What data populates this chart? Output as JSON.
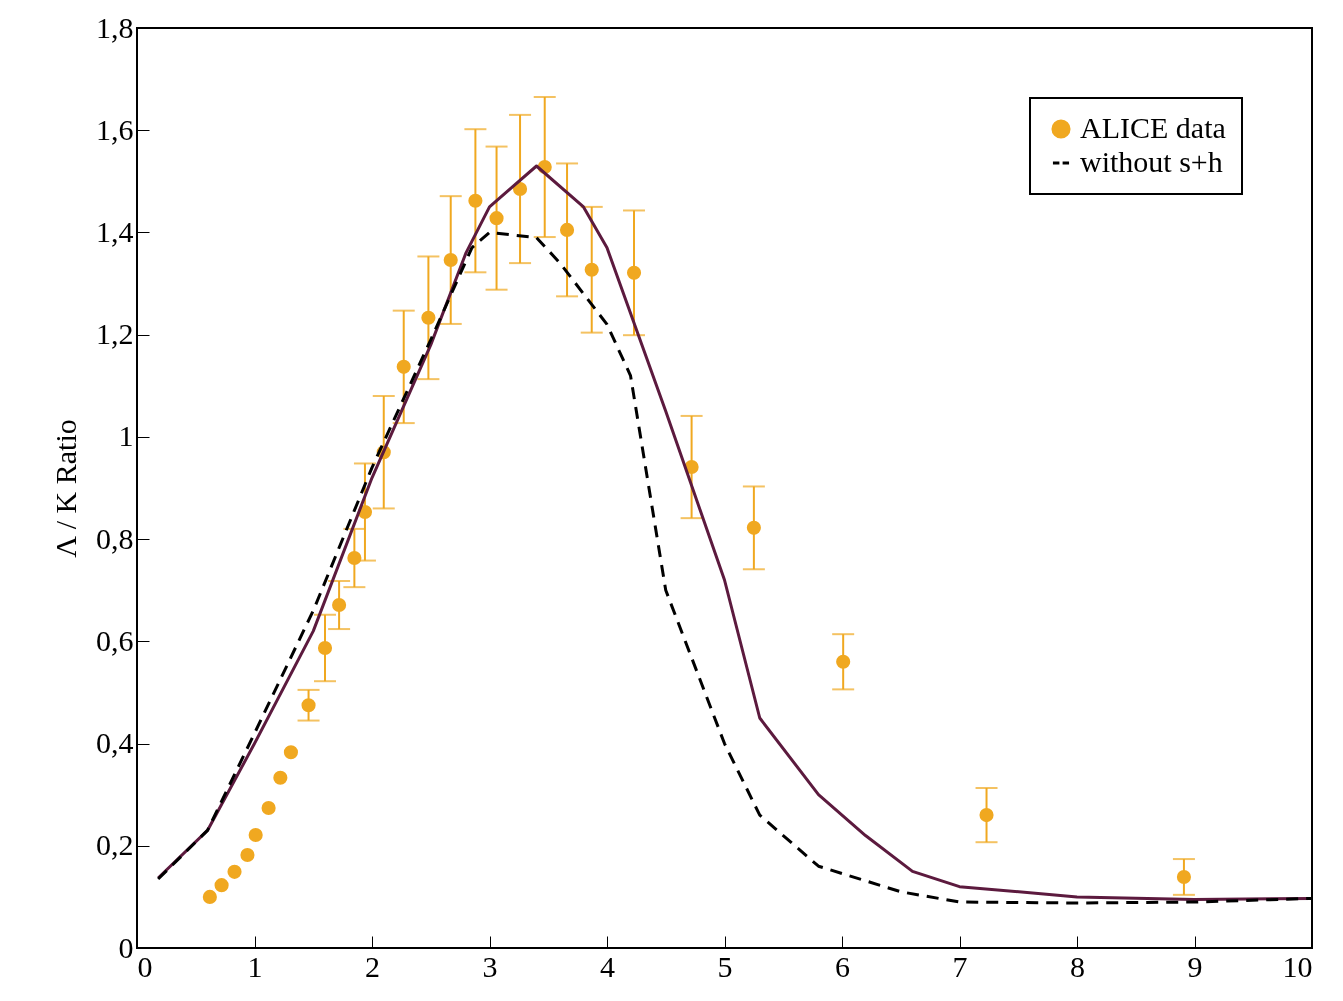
{
  "chart_data": {
    "type": "scatter",
    "ylabel": "Λ / K  Ratio",
    "xlim": [
      0,
      10
    ],
    "ylim": [
      0,
      1.8
    ],
    "xticks": [
      0,
      1,
      2,
      3,
      4,
      5,
      6,
      7,
      8,
      9,
      10
    ],
    "yticks": [
      0,
      {
        "value": 0.2,
        "label": "0,2"
      },
      {
        "value": 0.4,
        "label": "0,4"
      },
      {
        "value": 0.6,
        "label": "0,6"
      },
      {
        "value": 0.8,
        "label": "0,8"
      },
      1,
      {
        "value": 1.2,
        "label": "1,2"
      },
      {
        "value": 1.4,
        "label": "1,4"
      },
      {
        "value": 1.6,
        "label": "1,6"
      },
      {
        "value": 1.8,
        "label": "1,8"
      }
    ],
    "grid": false,
    "legend": "top right",
    "series": [
      {
        "name": "ALICE data",
        "color": "#f0a820",
        "marker": "circle",
        "x": [
          0.62,
          0.72,
          0.83,
          0.94,
          1.01,
          1.12,
          1.22,
          1.31,
          1.46,
          1.6,
          1.72,
          1.85,
          1.94,
          2.1,
          2.27,
          2.48,
          2.67,
          2.88,
          3.06,
          3.26,
          3.47,
          3.66,
          3.87,
          4.23,
          4.72,
          5.25,
          6.01,
          7.23,
          8.91
        ],
        "values": [
          0.1,
          0.123,
          0.149,
          0.182,
          0.221,
          0.274,
          0.333,
          0.383,
          0.475,
          0.587,
          0.671,
          0.763,
          0.853,
          0.97,
          1.137,
          1.233,
          1.346,
          1.462,
          1.428,
          1.485,
          1.528,
          1.405,
          1.327,
          1.321,
          0.941,
          0.822,
          0.56,
          0.26,
          0.139
        ],
        "errors": [
          null,
          null,
          null,
          null,
          null,
          null,
          null,
          null,
          0.03,
          0.065,
          0.047,
          0.057,
          0.095,
          0.11,
          0.11,
          0.12,
          0.125,
          0.14,
          0.14,
          0.145,
          0.137,
          0.13,
          0.123,
          0.122,
          0.1,
          0.081,
          0.054,
          0.053,
          0.035
        ],
        "xerrors": [
          0.05,
          0.05,
          0.05,
          0.05,
          0.05,
          0.05,
          0.05,
          0.05,
          null,
          null,
          null,
          null,
          null,
          null,
          null,
          null,
          null,
          null,
          null,
          null,
          null,
          null,
          null,
          null,
          null,
          null,
          null,
          null,
          null
        ]
      },
      {
        "type": "line",
        "color": "#5c1a3e",
        "line_style": "solid",
        "x": [
          0.18,
          0.6,
          1.0,
          1.5,
          2.0,
          2.5,
          2.8,
          3.0,
          3.4,
          3.8,
          4.0,
          4.5,
          5.0,
          5.3,
          5.8,
          6.2,
          6.6,
          7.0,
          8.0,
          9.0,
          10
        ],
        "values": [
          0.137,
          0.23,
          0.4,
          0.62,
          0.92,
          1.18,
          1.36,
          1.45,
          1.53,
          1.45,
          1.37,
          1.05,
          0.72,
          0.45,
          0.3,
          0.22,
          0.15,
          0.12,
          0.1,
          0.095,
          0.097
        ]
      },
      {
        "type": "line",
        "name": "without s+h",
        "color": "#000000",
        "line_style": "dashed",
        "x": [
          0.18,
          0.6,
          1.0,
          1.5,
          2.0,
          2.5,
          2.85,
          3.0,
          3.4,
          3.6,
          4.0,
          4.2,
          4.5,
          5.0,
          5.3,
          5.8,
          6.5,
          7.0,
          8.0,
          9.0,
          10
        ],
        "values": [
          0.135,
          0.23,
          0.42,
          0.66,
          0.94,
          1.19,
          1.37,
          1.4,
          1.39,
          1.34,
          1.22,
          1.12,
          0.7,
          0.4,
          0.26,
          0.16,
          0.11,
          0.09,
          0.088,
          0.09,
          0.097
        ]
      }
    ]
  }
}
